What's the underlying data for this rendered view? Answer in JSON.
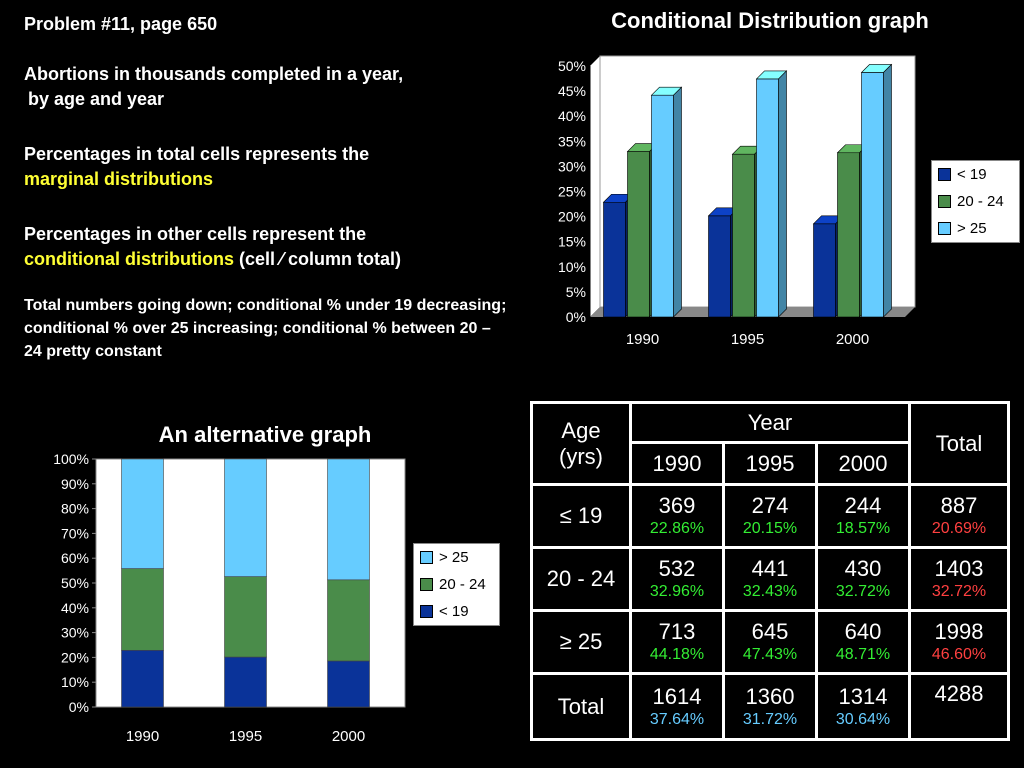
{
  "intro": {
    "title": "Problem #11, page 650",
    "line1": "Abortions in thousands completed in a year,",
    "line2": "by age and year",
    "marg_a": "Percentages in total cells represents the",
    "marg_b": "marginal distributions",
    "cond_a": "Percentages in other cells represent the",
    "cond_b": "conditional distributions",
    "cond_c": "(cell ⁄ column total)",
    "summary": "Total numbers going down; conditional % under 19 decreasing; conditional % over 25 increasing; conditional % between 20 – 24 pretty constant"
  },
  "colors": {
    "lt19": "#0a3399",
    "a20_24": "#4a8c4a",
    "gt25": "#66ccff",
    "total_pct": "#ff4040",
    "cond_pct": "#33ee33",
    "col_pct": "#66ccff"
  },
  "chart_data": [
    {
      "type": "bar",
      "title": "Conditional Distribution graph",
      "categories": [
        "1990",
        "1995",
        "2000"
      ],
      "series": [
        {
          "name": "< 19",
          "values": [
            22.86,
            20.15,
            18.57
          ]
        },
        {
          "name": "20 - 24",
          "values": [
            32.96,
            32.43,
            32.72
          ]
        },
        {
          "name": "> 25",
          "values": [
            44.18,
            47.43,
            48.71
          ]
        }
      ],
      "ylim": [
        0,
        50
      ],
      "yticks": [
        "0%",
        "5%",
        "10%",
        "15%",
        "20%",
        "25%",
        "30%",
        "35%",
        "40%",
        "45%",
        "50%"
      ],
      "legend": "right",
      "grid": false
    },
    {
      "type": "bar",
      "stacked": true,
      "title": "An alternative graph",
      "categories": [
        "1990",
        "1995",
        "2000"
      ],
      "series": [
        {
          "name": "< 19",
          "values": [
            22.86,
            20.15,
            18.57
          ]
        },
        {
          "name": "20 - 24",
          "values": [
            32.96,
            32.43,
            32.72
          ]
        },
        {
          "name": "> 25",
          "values": [
            44.18,
            47.43,
            48.71
          ]
        }
      ],
      "ylim": [
        0,
        100
      ],
      "yticks": [
        "0%",
        "10%",
        "20%",
        "30%",
        "40%",
        "50%",
        "60%",
        "70%",
        "80%",
        "90%",
        "100%"
      ],
      "legend": "right",
      "grid": false
    }
  ],
  "table": {
    "age_header": [
      "Age",
      "(yrs)"
    ],
    "year_header": "Year",
    "total_header": "Total",
    "years": [
      "1990",
      "1995",
      "2000"
    ],
    "rows": [
      {
        "label": "≤ 19",
        "counts": [
          "369",
          "274",
          "244"
        ],
        "pcts": [
          "22.86%",
          "20.15%",
          "18.57%"
        ],
        "total": "887",
        "total_pct": "20.69%"
      },
      {
        "label": "20 - 24",
        "counts": [
          "532",
          "441",
          "430"
        ],
        "pcts": [
          "32.96%",
          "32.43%",
          "32.72%"
        ],
        "total": "1403",
        "total_pct": "32.72%"
      },
      {
        "label": "≥ 25",
        "counts": [
          "713",
          "645",
          "640"
        ],
        "pcts": [
          "44.18%",
          "47.43%",
          "48.71%"
        ],
        "total": "1998",
        "total_pct": "46.60%"
      }
    ],
    "total_row": {
      "label": "Total",
      "counts": [
        "1614",
        "1360",
        "1314"
      ],
      "pcts": [
        "37.64%",
        "31.72%",
        "30.64%"
      ],
      "grand_total": "4288"
    }
  }
}
